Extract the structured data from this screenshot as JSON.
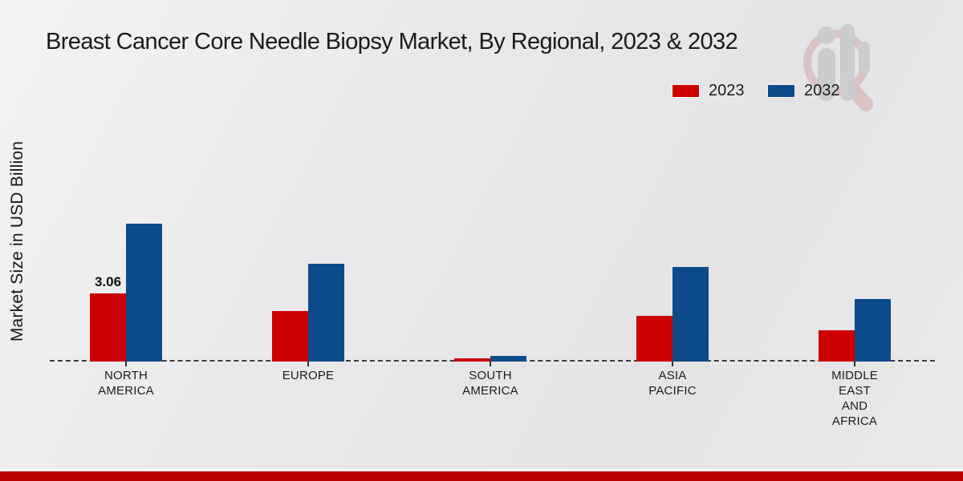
{
  "title": "Breast Cancer Core Needle Biopsy Market, By Regional, 2023 & 2032",
  "ylabel": "Market Size in USD Billion",
  "legend": {
    "items": [
      {
        "label": "2023",
        "color": "#cc0000"
      },
      {
        "label": "2032",
        "color": "#0d4a8a"
      }
    ],
    "position": "top-right"
  },
  "colors": {
    "series_2023": "#cc0000",
    "series_2032": "#0d4a8a",
    "footer_stripe": "#b80000",
    "baseline": "#3c3c3c",
    "text": "#1b1b1b"
  },
  "chart_data": {
    "type": "bar",
    "title": "Breast Cancer Core Needle Biopsy Market, By Regional, 2023 & 2032",
    "xlabel": "",
    "ylabel": "Market Size in USD Billion",
    "categories": [
      "NORTH AMERICA",
      "EUROPE",
      "SOUTH AMERICA",
      "ASIA PACIFIC",
      "MIDDLE EAST AND AFRICA"
    ],
    "category_label_lines": [
      [
        "NORTH",
        "AMERICA"
      ],
      [
        "EUROPE"
      ],
      [
        "SOUTH",
        "AMERICA"
      ],
      [
        "ASIA",
        "PACIFIC"
      ],
      [
        "MIDDLE",
        "EAST",
        "AND",
        "AFRICA"
      ]
    ],
    "series": [
      {
        "name": "2023",
        "color": "#cc0000",
        "values": [
          3.06,
          2.27,
          0.14,
          2.05,
          1.4
        ]
      },
      {
        "name": "2032",
        "color": "#0d4a8a",
        "values": [
          6.19,
          4.39,
          0.25,
          4.25,
          2.81
        ]
      }
    ],
    "data_labels": [
      {
        "category_index": 0,
        "series_index": 0,
        "text": "3.06"
      }
    ],
    "ylim": [
      0,
      7
    ],
    "grid": false,
    "baseline_style": "dashed",
    "legend_position": "top-right",
    "units": "USD Billion"
  },
  "watermark": {
    "name": "market-research-logo-watermark",
    "ring_color": "#c1696c",
    "figure_color": "#8d8d92"
  }
}
